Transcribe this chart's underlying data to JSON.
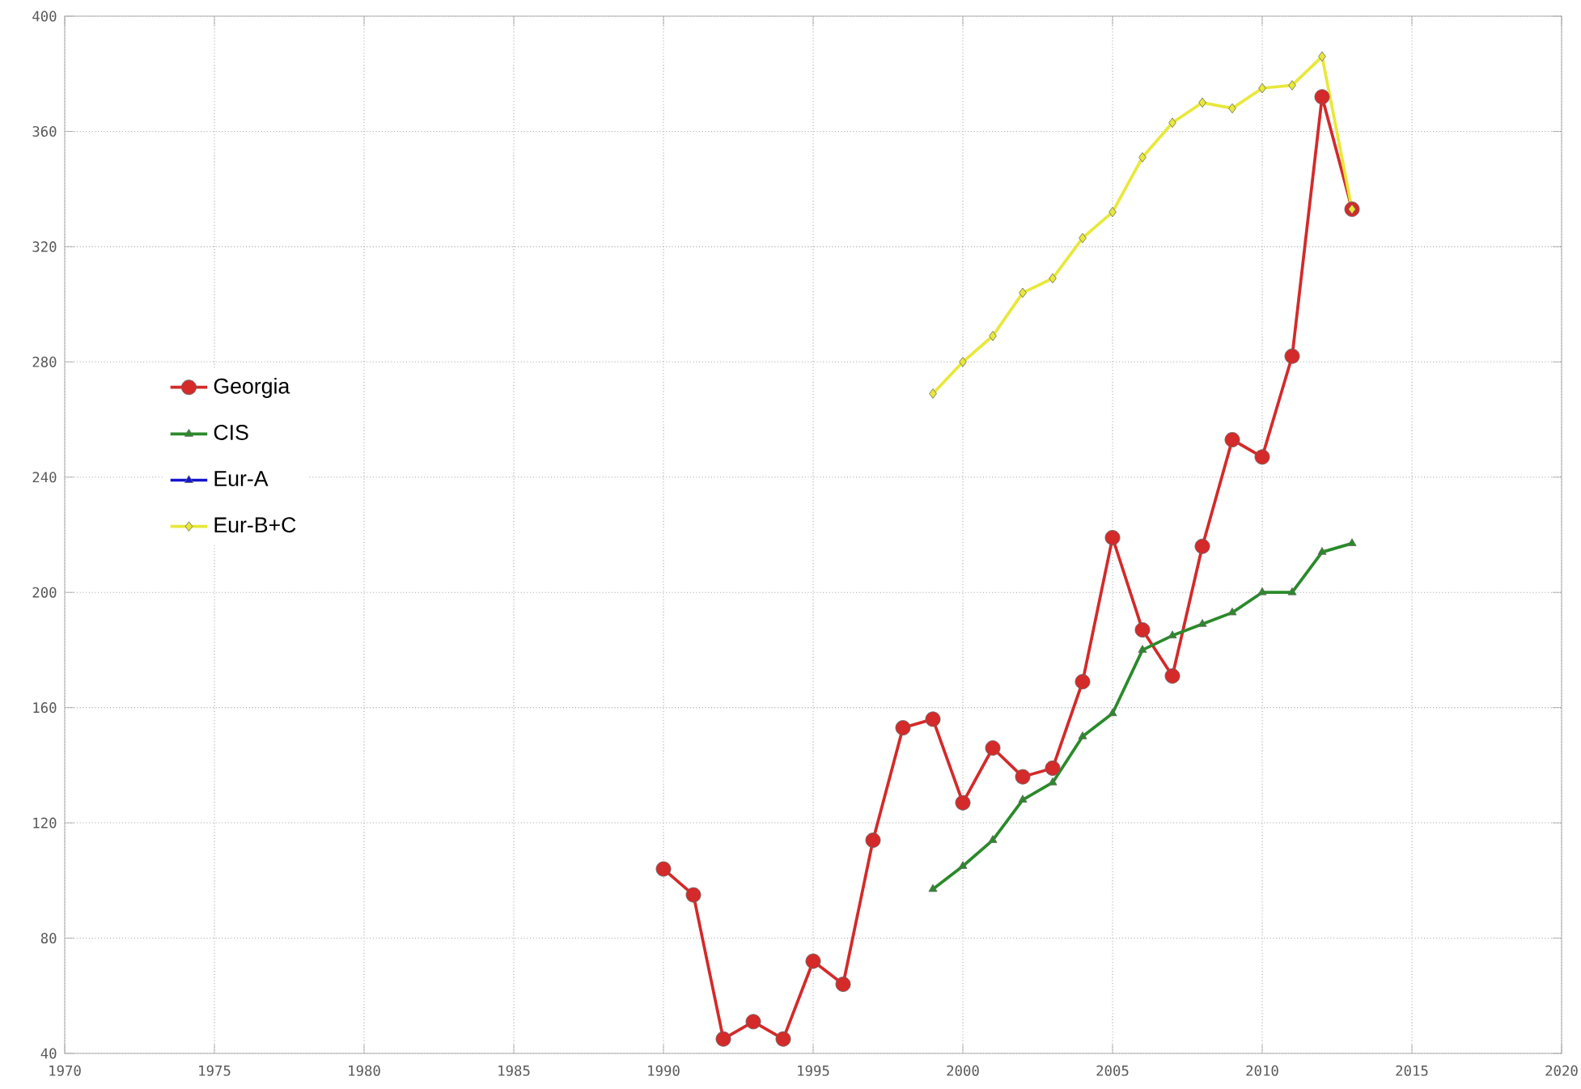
{
  "chart_data": {
    "type": "line",
    "x": [
      1990,
      1991,
      1992,
      1993,
      1994,
      1995,
      1996,
      1997,
      1998,
      1999,
      2000,
      2001,
      2002,
      2003,
      2004,
      2005,
      2006,
      2007,
      2008,
      2009,
      2010,
      2011,
      2012,
      2013
    ],
    "series": [
      {
        "name": "Georgia",
        "color": "#d42a2a",
        "marker": "circle",
        "values": [
          104,
          95,
          45,
          51,
          45,
          72,
          64,
          114,
          153,
          156,
          127,
          146,
          136,
          139,
          169,
          219,
          187,
          171,
          216,
          253,
          247,
          282,
          372,
          333
        ]
      },
      {
        "name": "CIS",
        "color": "#2a8a2a",
        "marker": "triangle",
        "values": [
          null,
          null,
          null,
          null,
          null,
          null,
          null,
          null,
          null,
          97,
          105,
          114,
          128,
          134,
          150,
          158,
          180,
          185,
          189,
          193,
          200,
          200,
          214,
          217
        ]
      },
      {
        "name": "Eur-A",
        "color": "#1515d0",
        "marker": "triangle",
        "values": [
          null,
          null,
          null,
          null,
          null,
          null,
          null,
          null,
          null,
          null,
          null,
          null,
          null,
          null,
          null,
          null,
          null,
          null,
          null,
          null,
          null,
          null,
          null,
          null
        ]
      },
      {
        "name": "Eur-B+C",
        "color": "#e8e83a",
        "marker": "diamond",
        "values": [
          null,
          null,
          null,
          null,
          null,
          null,
          null,
          null,
          null,
          269,
          280,
          289,
          304,
          309,
          323,
          332,
          351,
          363,
          370,
          368,
          375,
          376,
          386,
          333
        ]
      }
    ],
    "xlim": [
      1970,
      2020
    ],
    "xticks": [
      1970,
      1975,
      1980,
      1985,
      1990,
      1995,
      2000,
      2005,
      2010,
      2015,
      2020
    ],
    "ylim": [
      40,
      400
    ],
    "yticks": [
      40,
      80,
      120,
      160,
      200,
      240,
      280,
      320,
      360,
      400
    ],
    "grid": true,
    "legend": "left",
    "line_style": "solid"
  }
}
